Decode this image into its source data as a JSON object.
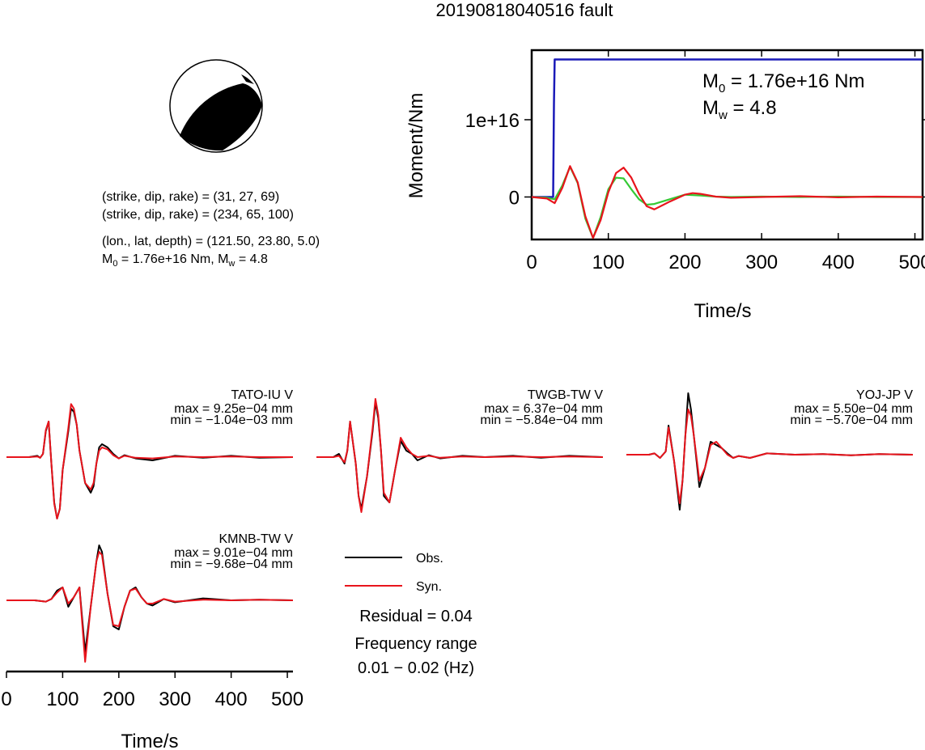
{
  "title": "20190818040516 fault",
  "focal_mechanism": {
    "nodal_plane_1": "(strike, dip, rake) = (31, 27, 69)",
    "nodal_plane_2": "(strike, dip, rake) = (234, 65, 100)",
    "location": "(lon., lat, depth) = (121.50, 23.80, 5.0)",
    "moment_line": {
      "m0_prefix": "M",
      "m0_sub": "0",
      "m0_text": " = 1.76e+16 Nm, M",
      "mw_sub": "w",
      "mw_text": " = 4.8"
    }
  },
  "moment_rate_chart": {
    "ylabel": "Moment/Nm",
    "xlabel": "Time/s",
    "annotation": {
      "m0_prefix": "M",
      "m0_sub": "0",
      "m0_text": " = 1.76e+16 Nm",
      "mw_prefix": "M",
      "mw_sub": "w",
      "mw_text": " = 4.8"
    }
  },
  "waveform_chart": {
    "xlabel": "Time/s",
    "legend": {
      "obs": "Obs.",
      "syn": "Syn."
    },
    "residual": "Residual = 0.04",
    "frequency_title": "Frequency range",
    "frequency_value": "0.01 − 0.02 (Hz)"
  },
  "colors": {
    "obs": "#000000",
    "syn": "#e8141c",
    "cumulative": "#1a1ab8",
    "moment_rate_obs": "#35c935"
  },
  "chart_data": [
    {
      "type": "line",
      "title": "",
      "xlabel": "Time/s",
      "ylabel": "Moment/Nm",
      "xlim": [
        0,
        510
      ],
      "ylim": [
        -5500000000000000.0,
        1.9e+16
      ],
      "xticks": [
        "0",
        "100",
        "200",
        "300",
        "400",
        "500"
      ],
      "yticks": [
        "0",
        "1e+16"
      ],
      "ytick_values": [
        0,
        1e+16
      ],
      "series": [
        {
          "name": "",
          "color": "#1a1ab8",
          "x": [
            0,
            28,
            29,
            30,
            510
          ],
          "values": [
            0,
            0,
            1.2e+16,
            1.78e+16,
            1.78e+16
          ]
        },
        {
          "name": "",
          "color": "#35c935",
          "x": [
            0,
            20,
            30,
            40,
            50,
            60,
            70,
            80,
            90,
            100,
            110,
            120,
            130,
            140,
            150,
            160,
            180,
            200,
            220,
            240,
            260,
            300,
            350,
            400,
            450,
            510
          ],
          "values": [
            0,
            -100000000000000.0,
            -300000000000000.0,
            1500000000000000.0,
            3900000000000000.0,
            1800000000000000.0,
            -2800000000000000.0,
            -5300000000000000.0,
            -2600000000000000.0,
            1000000000000000.0,
            2500000000000000.0,
            2400000000000000.0,
            1000000000000000.0,
            -300000000000000.0,
            -1000000000000000.0,
            -900000000000000.0,
            -300000000000000.0,
            300000000000000.0,
            200000000000000.0,
            50000000000000.0,
            0,
            50000000000000.0,
            0,
            50000000000000.0,
            0,
            0
          ]
        },
        {
          "name": "",
          "color": "#e8141c",
          "x": [
            0,
            20,
            30,
            40,
            50,
            60,
            70,
            80,
            90,
            100,
            110,
            120,
            130,
            140,
            150,
            160,
            180,
            200,
            210,
            220,
            240,
            260,
            300,
            350,
            400,
            450,
            510
          ],
          "values": [
            0,
            -200000000000000.0,
            -800000000000000.0,
            1200000000000000.0,
            4000000000000000.0,
            1900000000000000.0,
            -2500000000000000.0,
            -5300000000000000.0,
            -3000000000000000.0,
            600000000000000.0,
            3100000000000000.0,
            3800000000000000.0,
            2500000000000000.0,
            400000000000000.0,
            -1200000000000000.0,
            -1600000000000000.0,
            -600000000000000.0,
            300000000000000.0,
            500000000000000.0,
            400000000000000.0,
            50000000000000.0,
            -100000000000000.0,
            0,
            100000000000000.0,
            -50000000000000.0,
            50000000000000.0,
            0
          ]
        }
      ]
    },
    {
      "type": "line",
      "panels": [
        {
          "station": "TATO-IU V",
          "max": "max = 9.25e−04 mm",
          "min": "min = −1.04e−03 mm",
          "x": [
            0,
            40,
            55,
            60,
            65,
            70,
            75,
            80,
            85,
            90,
            95,
            100,
            110,
            115,
            120,
            125,
            130,
            140,
            150,
            155,
            160,
            165,
            170,
            180,
            190,
            200,
            210,
            230,
            260,
            300,
            350,
            400,
            450,
            510
          ],
          "obs": [
            0,
            0,
            0.02,
            -0.01,
            0.05,
            0.4,
            0.55,
            -0.1,
            -0.7,
            -0.95,
            -0.8,
            -0.2,
            0.4,
            0.75,
            0.7,
            0.5,
            0.1,
            -0.4,
            -0.55,
            -0.45,
            -0.1,
            0.15,
            0.2,
            0.15,
            0.05,
            -0.02,
            0.03,
            -0.02,
            -0.05,
            0.02,
            -0.01,
            0.02,
            -0.01,
            0
          ],
          "syn": [
            0,
            0,
            0.01,
            -0.01,
            0.05,
            0.42,
            0.55,
            -0.1,
            -0.72,
            -0.95,
            -0.8,
            -0.2,
            0.45,
            0.82,
            0.75,
            0.5,
            0.1,
            -0.4,
            -0.5,
            -0.4,
            -0.1,
            0.1,
            0.15,
            0.12,
            0.03,
            -0.02,
            0.02,
            -0.01,
            -0.02,
            0.01,
            0,
            0.01,
            0,
            0
          ]
        },
        {
          "station": "TWGB-TW V",
          "max": "max = 6.37e−04 mm",
          "min": "min = −5.84e−04 mm",
          "x": [
            0,
            30,
            40,
            50,
            55,
            60,
            70,
            75,
            80,
            90,
            100,
            105,
            110,
            115,
            120,
            130,
            140,
            150,
            160,
            170,
            180,
            200,
            220,
            260,
            300,
            350,
            400,
            450,
            510
          ],
          "obs": [
            0,
            0,
            0.05,
            -0.1,
            0.1,
            0.55,
            -0.1,
            -0.6,
            -0.8,
            -0.3,
            0.4,
            0.85,
            0.6,
            0.1,
            -0.6,
            -0.7,
            -0.2,
            0.25,
            0.1,
            0.05,
            -0.05,
            0.03,
            -0.02,
            0.02,
            0,
            0.02,
            -0.01,
            0.02,
            0
          ],
          "syn": [
            0,
            0,
            0.02,
            -0.08,
            0.1,
            0.55,
            -0.1,
            -0.6,
            -0.85,
            -0.3,
            0.45,
            0.9,
            0.65,
            0.1,
            -0.55,
            -0.7,
            -0.2,
            0.3,
            0.15,
            0.05,
            0,
            0.02,
            -0.01,
            0.01,
            0,
            0.01,
            0,
            0.01,
            0
          ]
        },
        {
          "station": "YOJ-JP V",
          "max": "max = 5.50e−04 mm",
          "min": "min = −5.70e−04 mm",
          "x": [
            0,
            40,
            50,
            60,
            70,
            75,
            85,
            95,
            100,
            105,
            110,
            115,
            120,
            130,
            140,
            150,
            160,
            170,
            180,
            190,
            200,
            220,
            250,
            300,
            350,
            400,
            450,
            510
          ],
          "obs": [
            0,
            0,
            0.02,
            -0.05,
            0.05,
            0.45,
            -0.1,
            -0.85,
            -0.4,
            0.3,
            0.95,
            0.7,
            0.3,
            -0.5,
            -0.2,
            0.2,
            0.15,
            0.1,
            0.02,
            -0.05,
            -0.02,
            -0.05,
            0.02,
            0,
            0.01,
            -0.01,
            0.01,
            0
          ],
          "syn": [
            0,
            0,
            0.02,
            -0.05,
            0.05,
            0.42,
            -0.1,
            -0.75,
            -0.4,
            0.3,
            0.7,
            0.6,
            0.3,
            -0.4,
            -0.2,
            0.15,
            0.2,
            0.1,
            0.0,
            -0.05,
            -0.02,
            -0.05,
            0.02,
            0,
            0.01,
            -0.01,
            0.01,
            0
          ]
        },
        {
          "station": "KMNB-TW V",
          "max": "max = 9.01e−04 mm",
          "min": "min = −9.68e−04 mm",
          "x": [
            0,
            50,
            70,
            80,
            90,
            100,
            110,
            120,
            130,
            140,
            150,
            160,
            165,
            170,
            180,
            190,
            200,
            210,
            220,
            230,
            240,
            250,
            260,
            280,
            300,
            350,
            400,
            450,
            510
          ],
          "obs": [
            0,
            0,
            -0.02,
            0.02,
            0.15,
            0.2,
            -0.1,
            0.05,
            0.2,
            -0.8,
            -0.1,
            0.6,
            0.85,
            0.75,
            0.1,
            -0.4,
            -0.45,
            -0.1,
            0.15,
            0.2,
            0.05,
            -0.05,
            -0.08,
            0.02,
            -0.03,
            0.03,
            0,
            0.01,
            0
          ],
          "syn": [
            0,
            0,
            -0.02,
            0.02,
            0.12,
            0.2,
            -0.05,
            0.05,
            0.2,
            -0.95,
            -0.1,
            0.6,
            0.75,
            0.7,
            0.1,
            -0.38,
            -0.4,
            -0.1,
            0.15,
            0.18,
            0.05,
            -0.05,
            -0.05,
            0.02,
            -0.02,
            0.01,
            0,
            0.01,
            0
          ]
        }
      ],
      "xlabel": "Time/s",
      "xlim": [
        0,
        510
      ],
      "xticks": [
        "0",
        "100",
        "200",
        "300",
        "400",
        "500"
      ],
      "legend": [
        "Obs.",
        "Syn."
      ]
    }
  ]
}
